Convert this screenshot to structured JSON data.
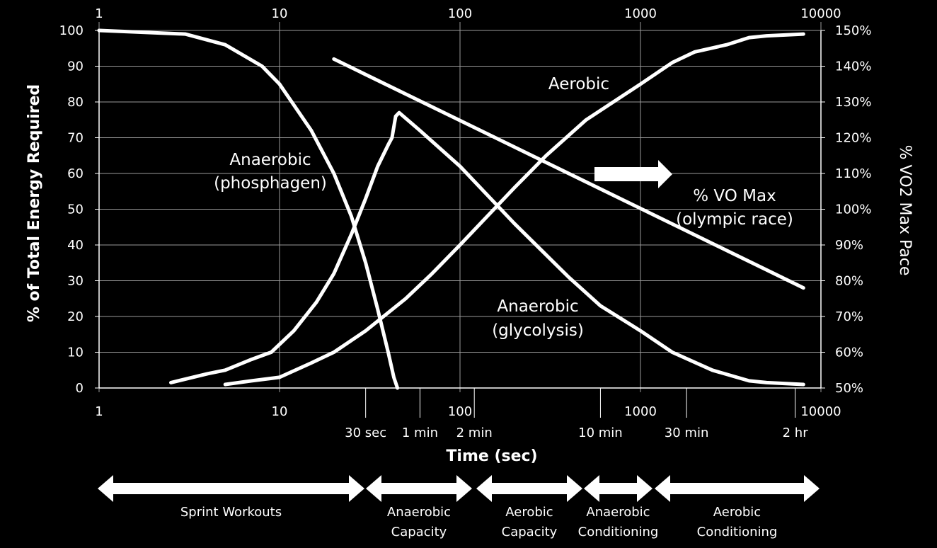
{
  "chart_data": {
    "type": "line",
    "xscale": "log",
    "xlim": [
      1,
      10000
    ],
    "ylim": [
      0,
      100
    ],
    "y2lim": [
      50,
      150
    ],
    "grid": true,
    "xlabel": "Time (sec)",
    "ylabel": "% of Total Energy Required",
    "y2label": "% VO2 Max Pace",
    "x_ticks_top": [
      "1",
      "10",
      "100",
      "1000",
      "10000"
    ],
    "x_ticks_bottom": [
      "1",
      "10",
      "100",
      "1000",
      "10000"
    ],
    "y_ticks": [
      "0",
      "10",
      "20",
      "30",
      "40",
      "50",
      "60",
      "70",
      "80",
      "90",
      "100"
    ],
    "y2_ticks": [
      "50%",
      "60%",
      "70%",
      "80%",
      "90%",
      "100%",
      "110%",
      "120%",
      "130%",
      "140%",
      "150%"
    ],
    "time_markers": [
      {
        "label": "30 sec",
        "x": 30
      },
      {
        "label": "1 min",
        "x": 60
      },
      {
        "label": "2 min",
        "x": 120
      },
      {
        "label": "10 min",
        "x": 600
      },
      {
        "label": "30 min",
        "x": 1800
      },
      {
        "label": "2 hr",
        "x": 7200
      }
    ],
    "series": [
      {
        "name": "Anaerobic (phosphagen)",
        "axis": "left",
        "points": [
          [
            1,
            100
          ],
          [
            3,
            99
          ],
          [
            5,
            96
          ],
          [
            8,
            90
          ],
          [
            10,
            85
          ],
          [
            15,
            72
          ],
          [
            20,
            60
          ],
          [
            25,
            48
          ],
          [
            30,
            35
          ],
          [
            35,
            22
          ],
          [
            40,
            10
          ],
          [
            43,
            3
          ],
          [
            45,
            0
          ]
        ]
      },
      {
        "name": "Anaerobic (glycolysis)",
        "axis": "left",
        "points": [
          [
            2.5,
            1.5
          ],
          [
            4,
            4
          ],
          [
            5,
            5
          ],
          [
            7,
            8
          ],
          [
            9,
            10
          ],
          [
            12,
            16
          ],
          [
            16,
            24
          ],
          [
            20,
            32
          ],
          [
            25,
            43
          ],
          [
            30,
            53
          ],
          [
            35,
            62
          ],
          [
            40,
            68
          ],
          [
            42,
            70
          ],
          [
            44,
            76
          ],
          [
            46,
            77
          ],
          [
            60,
            72
          ],
          [
            100,
            62
          ],
          [
            200,
            46
          ],
          [
            400,
            31
          ],
          [
            600,
            23
          ],
          [
            1000,
            16
          ],
          [
            1500,
            10
          ],
          [
            2500,
            5
          ],
          [
            4000,
            2
          ],
          [
            5000,
            1.5
          ],
          [
            8000,
            1
          ]
        ]
      },
      {
        "name": "Aerobic",
        "axis": "left",
        "points": [
          [
            5,
            1
          ],
          [
            7,
            2
          ],
          [
            10,
            3
          ],
          [
            15,
            7
          ],
          [
            20,
            10
          ],
          [
            30,
            16
          ],
          [
            50,
            25
          ],
          [
            70,
            32
          ],
          [
            100,
            40
          ],
          [
            200,
            56
          ],
          [
            300,
            65
          ],
          [
            500,
            75
          ],
          [
            1000,
            85
          ],
          [
            1500,
            91
          ],
          [
            2000,
            94
          ],
          [
            3000,
            96
          ],
          [
            4000,
            98
          ],
          [
            5000,
            98.5
          ],
          [
            8000,
            99
          ]
        ]
      },
      {
        "name": "% VO Max (olympic race)",
        "axis": "right",
        "points": [
          [
            20,
            142
          ],
          [
            8000,
            78
          ]
        ]
      }
    ],
    "annotations": {
      "phosphagen_line1": "Anaerobic",
      "phosphagen_line2": "(phosphagen)",
      "glycolysis_line1": "Anaerobic",
      "glycolysis_line2": "(glycolysis)",
      "aerobic": "Aerobic",
      "vo2_line1": "% VO Max",
      "vo2_line2": "(olympic race)"
    },
    "training_zones": [
      {
        "label1": "Sprint Workouts",
        "label2": ""
      },
      {
        "label1": "Anaerobic",
        "label2": "Capacity"
      },
      {
        "label1": "Aerobic",
        "label2": "Capacity"
      },
      {
        "label1": "Anaerobic",
        "label2": "Conditioning"
      },
      {
        "label1": "Aerobic",
        "label2": "Conditioning"
      }
    ],
    "colors": {
      "background": "#000000",
      "foreground": "#ffffff",
      "grid": "#9a9a9a"
    }
  }
}
